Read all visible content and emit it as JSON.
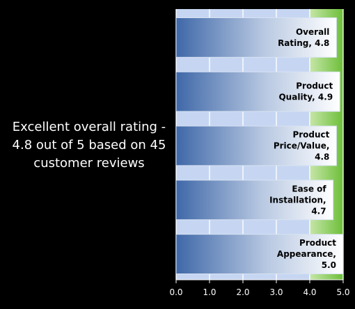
{
  "caption": "Excellent overall rating - 4.8 out of 5 based on 45 customer reviews",
  "chart_data": {
    "type": "bar",
    "orientation": "horizontal",
    "categories": [
      "Overall Rating",
      "Product Quality",
      "Product Price/Value",
      "Ease of Installation",
      "Product Appearance"
    ],
    "values": [
      4.8,
      4.9,
      4.8,
      4.7,
      5.0
    ],
    "bar_labels": [
      [
        "Overall",
        "Rating, 4.8"
      ],
      [
        "Product",
        "Quality, 4.9"
      ],
      [
        "Product",
        "Price/Value,",
        "4.8"
      ],
      [
        "Ease of",
        "Installation,",
        "4.7"
      ],
      [
        "Product",
        "Appearance,",
        "5.0"
      ]
    ],
    "xlim": [
      0,
      5
    ],
    "x_ticks": [
      "0.0",
      "1.0",
      "2.0",
      "3.0",
      "4.0",
      "5.0"
    ],
    "highlight_range": [
      4,
      5
    ],
    "colors": {
      "plot_bg": "#c6d6f2",
      "highlight": "#8fce5a",
      "bar_dark": "#3f68a8",
      "bar_light": "#ffffff"
    }
  }
}
